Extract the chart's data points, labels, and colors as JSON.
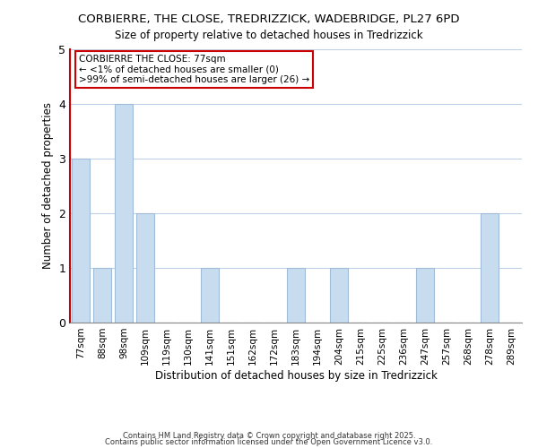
{
  "title_line1": "CORBIERRE, THE CLOSE, TREDRIZZICK, WADEBRIDGE, PL27 6PD",
  "title_line2": "Size of property relative to detached houses in Tredrizzick",
  "xlabel": "Distribution of detached houses by size in Tredrizzick",
  "ylabel": "Number of detached properties",
  "bar_labels": [
    "77sqm",
    "88sqm",
    "98sqm",
    "109sqm",
    "119sqm",
    "130sqm",
    "141sqm",
    "151sqm",
    "162sqm",
    "172sqm",
    "183sqm",
    "194sqm",
    "204sqm",
    "215sqm",
    "225sqm",
    "236sqm",
    "247sqm",
    "257sqm",
    "268sqm",
    "278sqm",
    "289sqm"
  ],
  "bar_values": [
    3,
    1,
    4,
    2,
    0,
    0,
    1,
    0,
    0,
    0,
    1,
    0,
    1,
    0,
    0,
    0,
    1,
    0,
    0,
    2,
    0
  ],
  "bar_color": "#c8dcf0",
  "bar_edge_color": "#a0bcd8",
  "highlight_color": "#cc0000",
  "annotation_title": "CORBIERRE THE CLOSE: 77sqm",
  "annotation_line2": "← <1% of detached houses are smaller (0)",
  "annotation_line3": ">99% of semi-detached houses are larger (26) →",
  "annotation_box_edge_color": "#cc0000",
  "ylim": [
    0,
    5
  ],
  "yticks": [
    0,
    1,
    2,
    3,
    4,
    5
  ],
  "footnote1": "Contains HM Land Registry data © Crown copyright and database right 2025.",
  "footnote2": "Contains public sector information licensed under the Open Government Licence v3.0.",
  "background_color": "#ffffff",
  "grid_color": "#c0d0e8"
}
